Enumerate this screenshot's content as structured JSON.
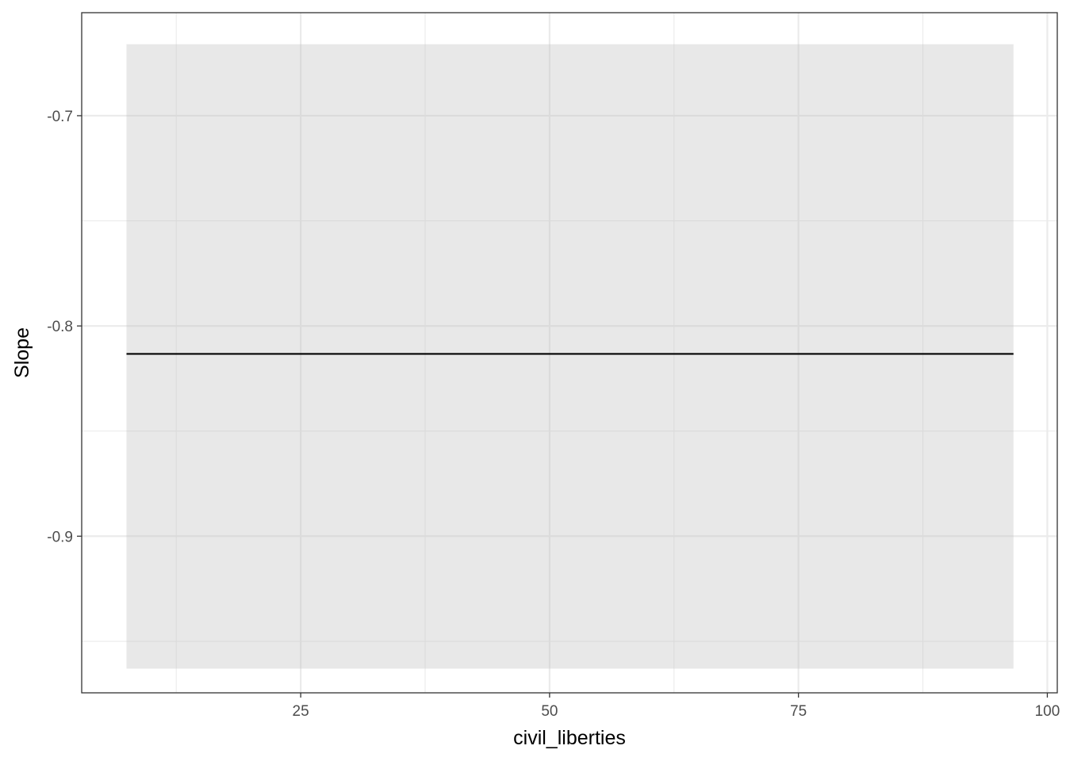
{
  "chart_data": {
    "type": "line",
    "title": "",
    "xlabel": "civil_liberties",
    "ylabel": "Slope",
    "xlim": [
      3.0,
      101.0
    ],
    "ylim": [
      -0.9745,
      -0.651
    ],
    "x_ticks": [
      25,
      50,
      75,
      100
    ],
    "y_ticks": [
      -0.9,
      -0.8,
      -0.7
    ],
    "x_tick_labels": [
      "25",
      "50",
      "75",
      "100"
    ],
    "y_tick_labels": [
      "-0.9",
      "-0.8",
      "-0.7"
    ],
    "grid": true,
    "series": [
      {
        "x": [
          7.5,
          96.6
        ],
        "y": [
          -0.8133,
          -0.8133
        ],
        "color": "#000000"
      }
    ],
    "ribbon": {
      "x": [
        7.5,
        96.6
      ],
      "lower": [
        -0.963,
        -0.963
      ],
      "upper": [
        -0.666,
        -0.666
      ],
      "color": "#e8e8e8"
    }
  }
}
